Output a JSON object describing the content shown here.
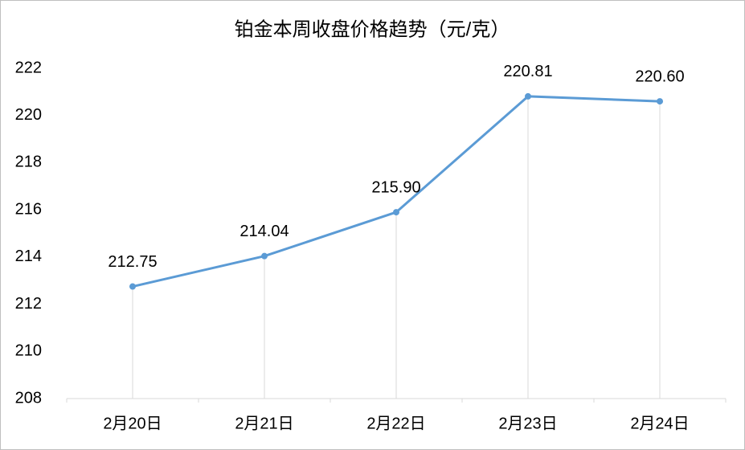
{
  "chart_data": {
    "type": "line",
    "title": "铂金本周收盘价格趋势（元/克）",
    "categories": [
      "2月20日",
      "2月21日",
      "2月22日",
      "2月23日",
      "2月24日"
    ],
    "values": [
      212.75,
      214.04,
      215.9,
      220.81,
      220.6
    ],
    "value_labels": [
      "212.75",
      "214.04",
      "215.90",
      "220.81",
      "220.60"
    ],
    "color": "#5b9bd5",
    "ylim": [
      208,
      222
    ],
    "yticks": [
      208,
      210,
      212,
      214,
      216,
      218,
      220,
      222
    ],
    "drop_lines": true
  }
}
